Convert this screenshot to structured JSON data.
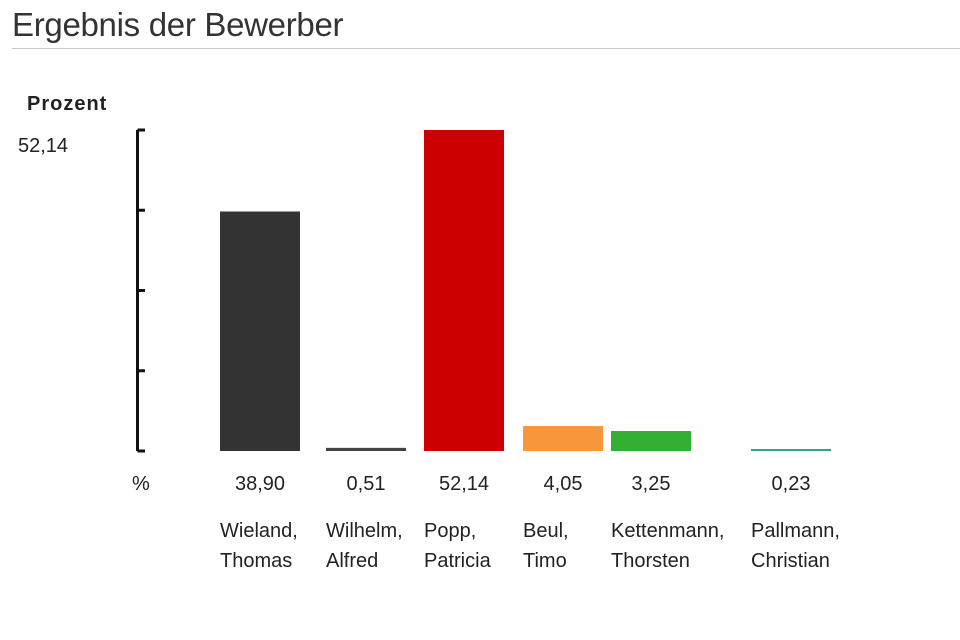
{
  "header": {
    "title": "Ergebnis der Bewerber"
  },
  "chart_data": {
    "type": "bar",
    "ylabel": "Prozent",
    "y_max_label": "52,14",
    "unit_label": "%",
    "ylim": [
      0,
      52.14
    ],
    "categories": [
      "Wieland, Thomas",
      "Wilhelm, Alfred",
      "Popp, Patricia",
      "Beul, Timo",
      "Kettenmann, Thorsten",
      "Pallmann, Christian"
    ],
    "category_lines": [
      [
        "Wieland,",
        "Thomas"
      ],
      [
        "Wilhelm,",
        "Alfred"
      ],
      [
        "Popp,",
        "Patricia"
      ],
      [
        "Beul,",
        "Timo"
      ],
      [
        "Kettenmann,",
        "Thorsten"
      ],
      [
        "Pallmann,",
        "Christian"
      ]
    ],
    "values": [
      38.9,
      0.51,
      52.14,
      4.05,
      3.25,
      0.23
    ],
    "value_labels": [
      "38,90",
      "0,51",
      "52,14",
      "4,05",
      "3,25",
      "0,23"
    ],
    "colors": [
      "#333333",
      "#444444",
      "#cc0000",
      "#f7963a",
      "#33b033",
      "#2aa88a"
    ]
  }
}
